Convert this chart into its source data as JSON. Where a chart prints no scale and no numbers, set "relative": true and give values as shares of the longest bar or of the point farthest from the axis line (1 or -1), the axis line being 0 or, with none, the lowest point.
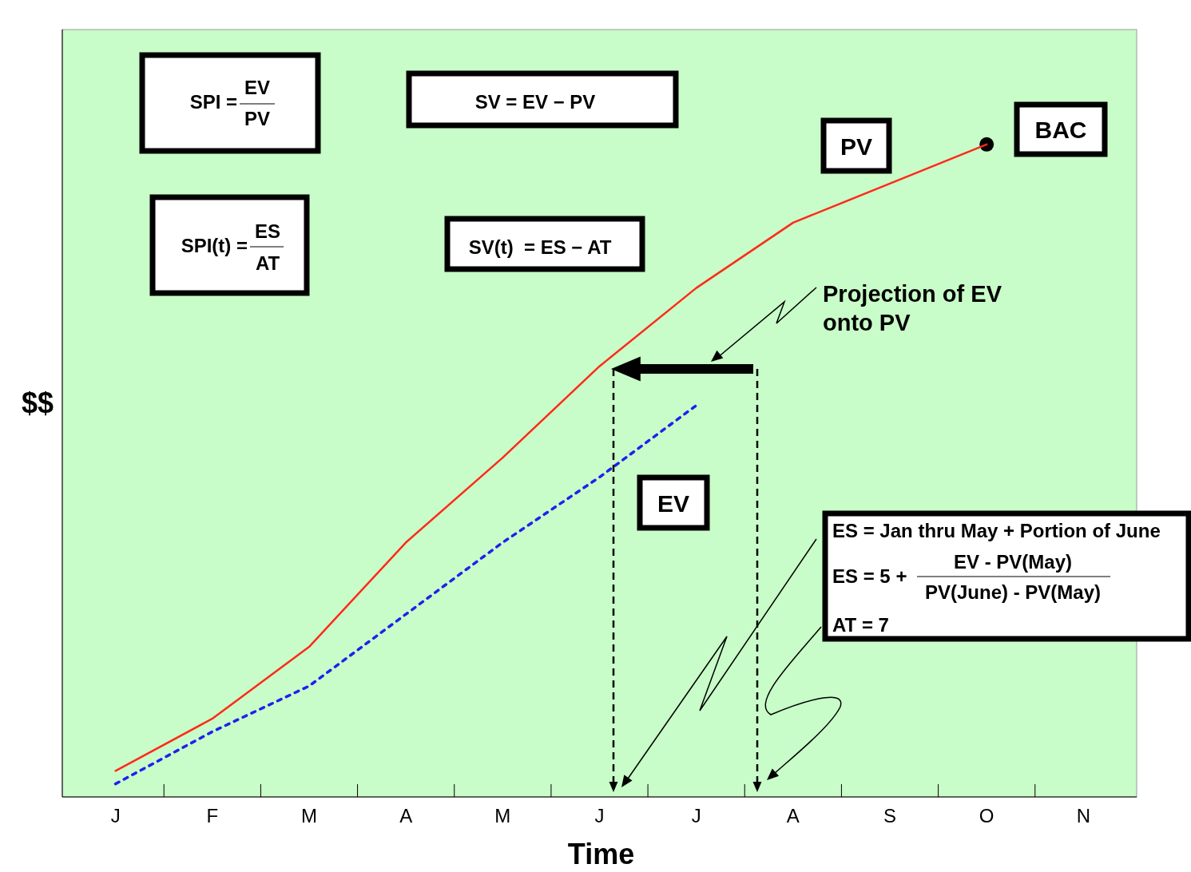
{
  "chart_data": {
    "type": "line",
    "xlabel": "Time",
    "ylabel": "$$",
    "relative": true,
    "categories": [
      "J",
      "F",
      "M",
      "A",
      "M",
      "J",
      "J",
      "A",
      "S",
      "O",
      "N"
    ],
    "series": [
      {
        "name": "PV",
        "color": "#ff2a1a",
        "line_style": "solid",
        "values": [
          0.04,
          0.12,
          0.23,
          0.39,
          0.52,
          0.66,
          0.78,
          0.88,
          0.94,
          1,
          null
        ]
      },
      {
        "name": "EV",
        "color": "#2020ee",
        "line_style": "dotted",
        "values": [
          0.02,
          0.1,
          0.17,
          0.28,
          0.39,
          0.49,
          0.6,
          null,
          null,
          null,
          null
        ]
      },
      {
        "name": "BAC",
        "type": "scatter",
        "color": "#000000",
        "marker": "circle",
        "values": [
          null,
          null,
          null,
          null,
          null,
          null,
          null,
          null,
          null,
          1,
          null
        ]
      }
    ],
    "annotations": [
      "SPI =",
      "EV",
      "PV",
      "SV = EV − PV",
      "SPI(t) =",
      "ES",
      "AT",
      "SV(t)  = ES − AT",
      "Projection of EV\nonto PV",
      "ES = Jan thru May + Portion of June",
      "ES = 5 +",
      "EV - PV(May)",
      "PV(June) - PV(May)",
      "AT = 7"
    ]
  }
}
